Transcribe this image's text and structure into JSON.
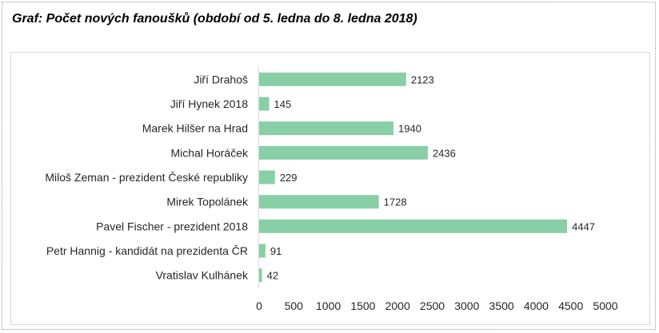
{
  "caption": "Graf: Počet nových fanoušků (období od 5. ledna do 8. ledna 2018)",
  "chart_data": {
    "type": "bar",
    "orientation": "horizontal",
    "title": "",
    "xlabel": "",
    "ylabel": "",
    "categories": [
      "Jiří Drahoš",
      "Jiří Hynek 2018",
      "Marek Hilšer na Hrad",
      "Michal Horáček",
      "Miloš Zeman - prezident České republiky",
      "Mirek Topolánek",
      "Pavel Fischer - prezident 2018",
      "Petr Hannig - kandidát na prezidenta ČR",
      "Vratislav Kulhánek"
    ],
    "values": [
      2123,
      145,
      1940,
      2436,
      229,
      1728,
      4447,
      91,
      42
    ],
    "xlim": [
      0,
      5000
    ],
    "xticks": [
      0,
      500,
      1000,
      1500,
      2000,
      2500,
      3000,
      3500,
      4000,
      4500,
      5000
    ],
    "bar_color": "#88cfa5",
    "data_labels": true,
    "grid": false,
    "legend": "none"
  }
}
